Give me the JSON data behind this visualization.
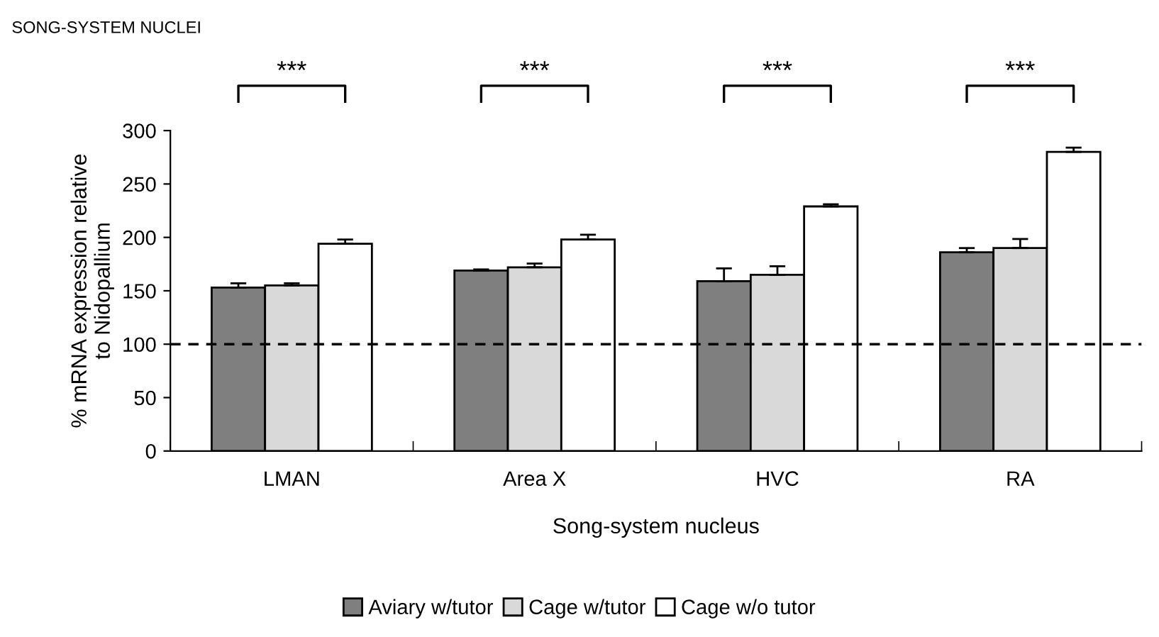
{
  "chart_data": {
    "type": "bar",
    "title": "SONG-SYSTEM NUCLEI",
    "xlabel": "Song-system nucleus",
    "ylabel": "% mRNA expression relative\nto Nidopallium",
    "categories": [
      "LMAN",
      "Area X",
      "HVC",
      "RA"
    ],
    "series": [
      {
        "name": "Aviary w/tutor",
        "color": "#7f7f7f",
        "values": [
          153,
          169,
          159,
          186
        ],
        "errors": [
          4,
          1,
          12,
          4
        ]
      },
      {
        "name": "Cage w/tutor",
        "color": "#d9d9d9",
        "values": [
          155,
          172,
          165,
          190
        ],
        "errors": [
          2,
          3.5,
          8,
          8.5
        ]
      },
      {
        "name": "Cage w/o tutor",
        "color": "#ffffff",
        "values": [
          194,
          198,
          229,
          280
        ],
        "errors": [
          4,
          4.5,
          2,
          4
        ]
      }
    ],
    "ylim": [
      0,
      300
    ],
    "yticks": [
      0,
      50,
      100,
      150,
      200,
      250,
      300
    ],
    "ref_lines": [
      {
        "axis": "y",
        "value": 100,
        "line_style": "dashed",
        "color": "#000000"
      }
    ],
    "annotations": [
      "***",
      "***",
      "***",
      "***"
    ],
    "legend": "bottom",
    "grid": false
  }
}
